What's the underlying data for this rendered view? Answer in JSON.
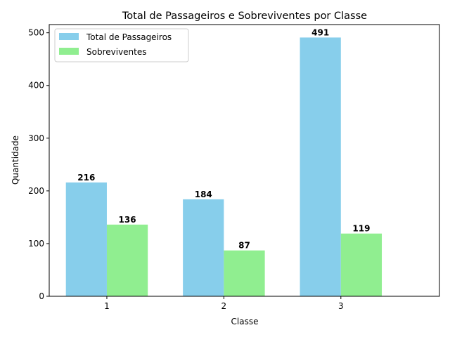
{
  "chart_data": {
    "type": "bar",
    "title": "Total de Passageiros e Sobreviventes por Classe",
    "xlabel": "Classe",
    "ylabel": "Quantidade",
    "categories": [
      "1",
      "2",
      "3"
    ],
    "series": [
      {
        "name": "Total de Passageiros",
        "values": [
          216,
          184,
          491
        ],
        "color": "#87ceeb"
      },
      {
        "name": "Sobreviventes",
        "values": [
          136,
          87,
          119
        ],
        "color": "#90ee90"
      }
    ],
    "ylim": [
      0,
      515.55
    ],
    "yticks": [
      0,
      100,
      200,
      300,
      400,
      500
    ],
    "grid": false,
    "legend": "top-left"
  }
}
